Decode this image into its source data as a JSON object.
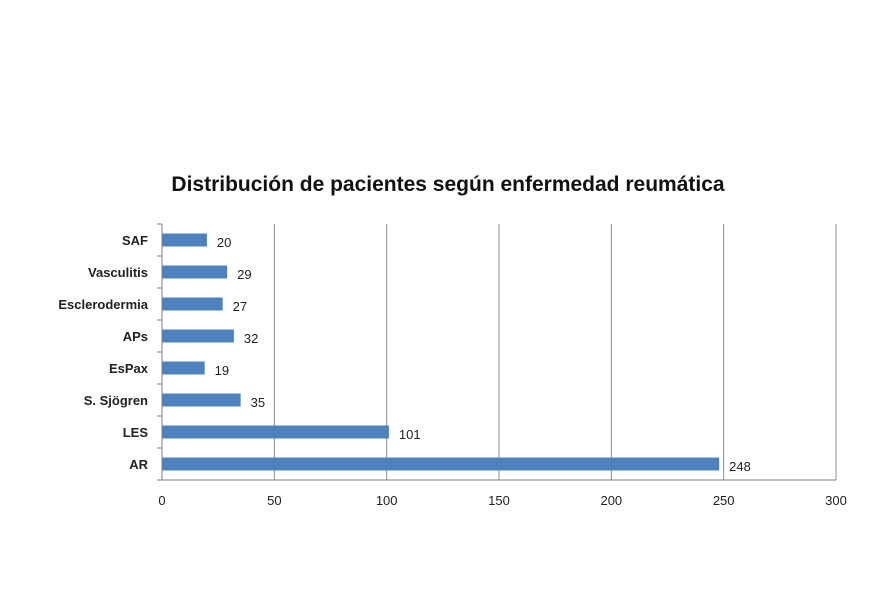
{
  "chart_data": {
    "type": "bar",
    "orientation": "horizontal",
    "title": "Distribución  de pacientes según enfermedad reumática",
    "xlabel": "",
    "ylabel": "",
    "categories": [
      "SAF",
      "Vasculitis",
      "Esclerodermia",
      "APs",
      "EsPax",
      "S. Sjögren",
      "LES",
      "AR"
    ],
    "values": [
      20,
      29,
      27,
      32,
      19,
      35,
      101,
      248
    ],
    "xlim": [
      0,
      300
    ],
    "xticks": [
      0,
      50,
      100,
      150,
      200,
      250,
      300
    ],
    "grid": "vertical major gridlines",
    "legend": "none",
    "data_labels": true,
    "bar_color": "#4f81bd"
  }
}
